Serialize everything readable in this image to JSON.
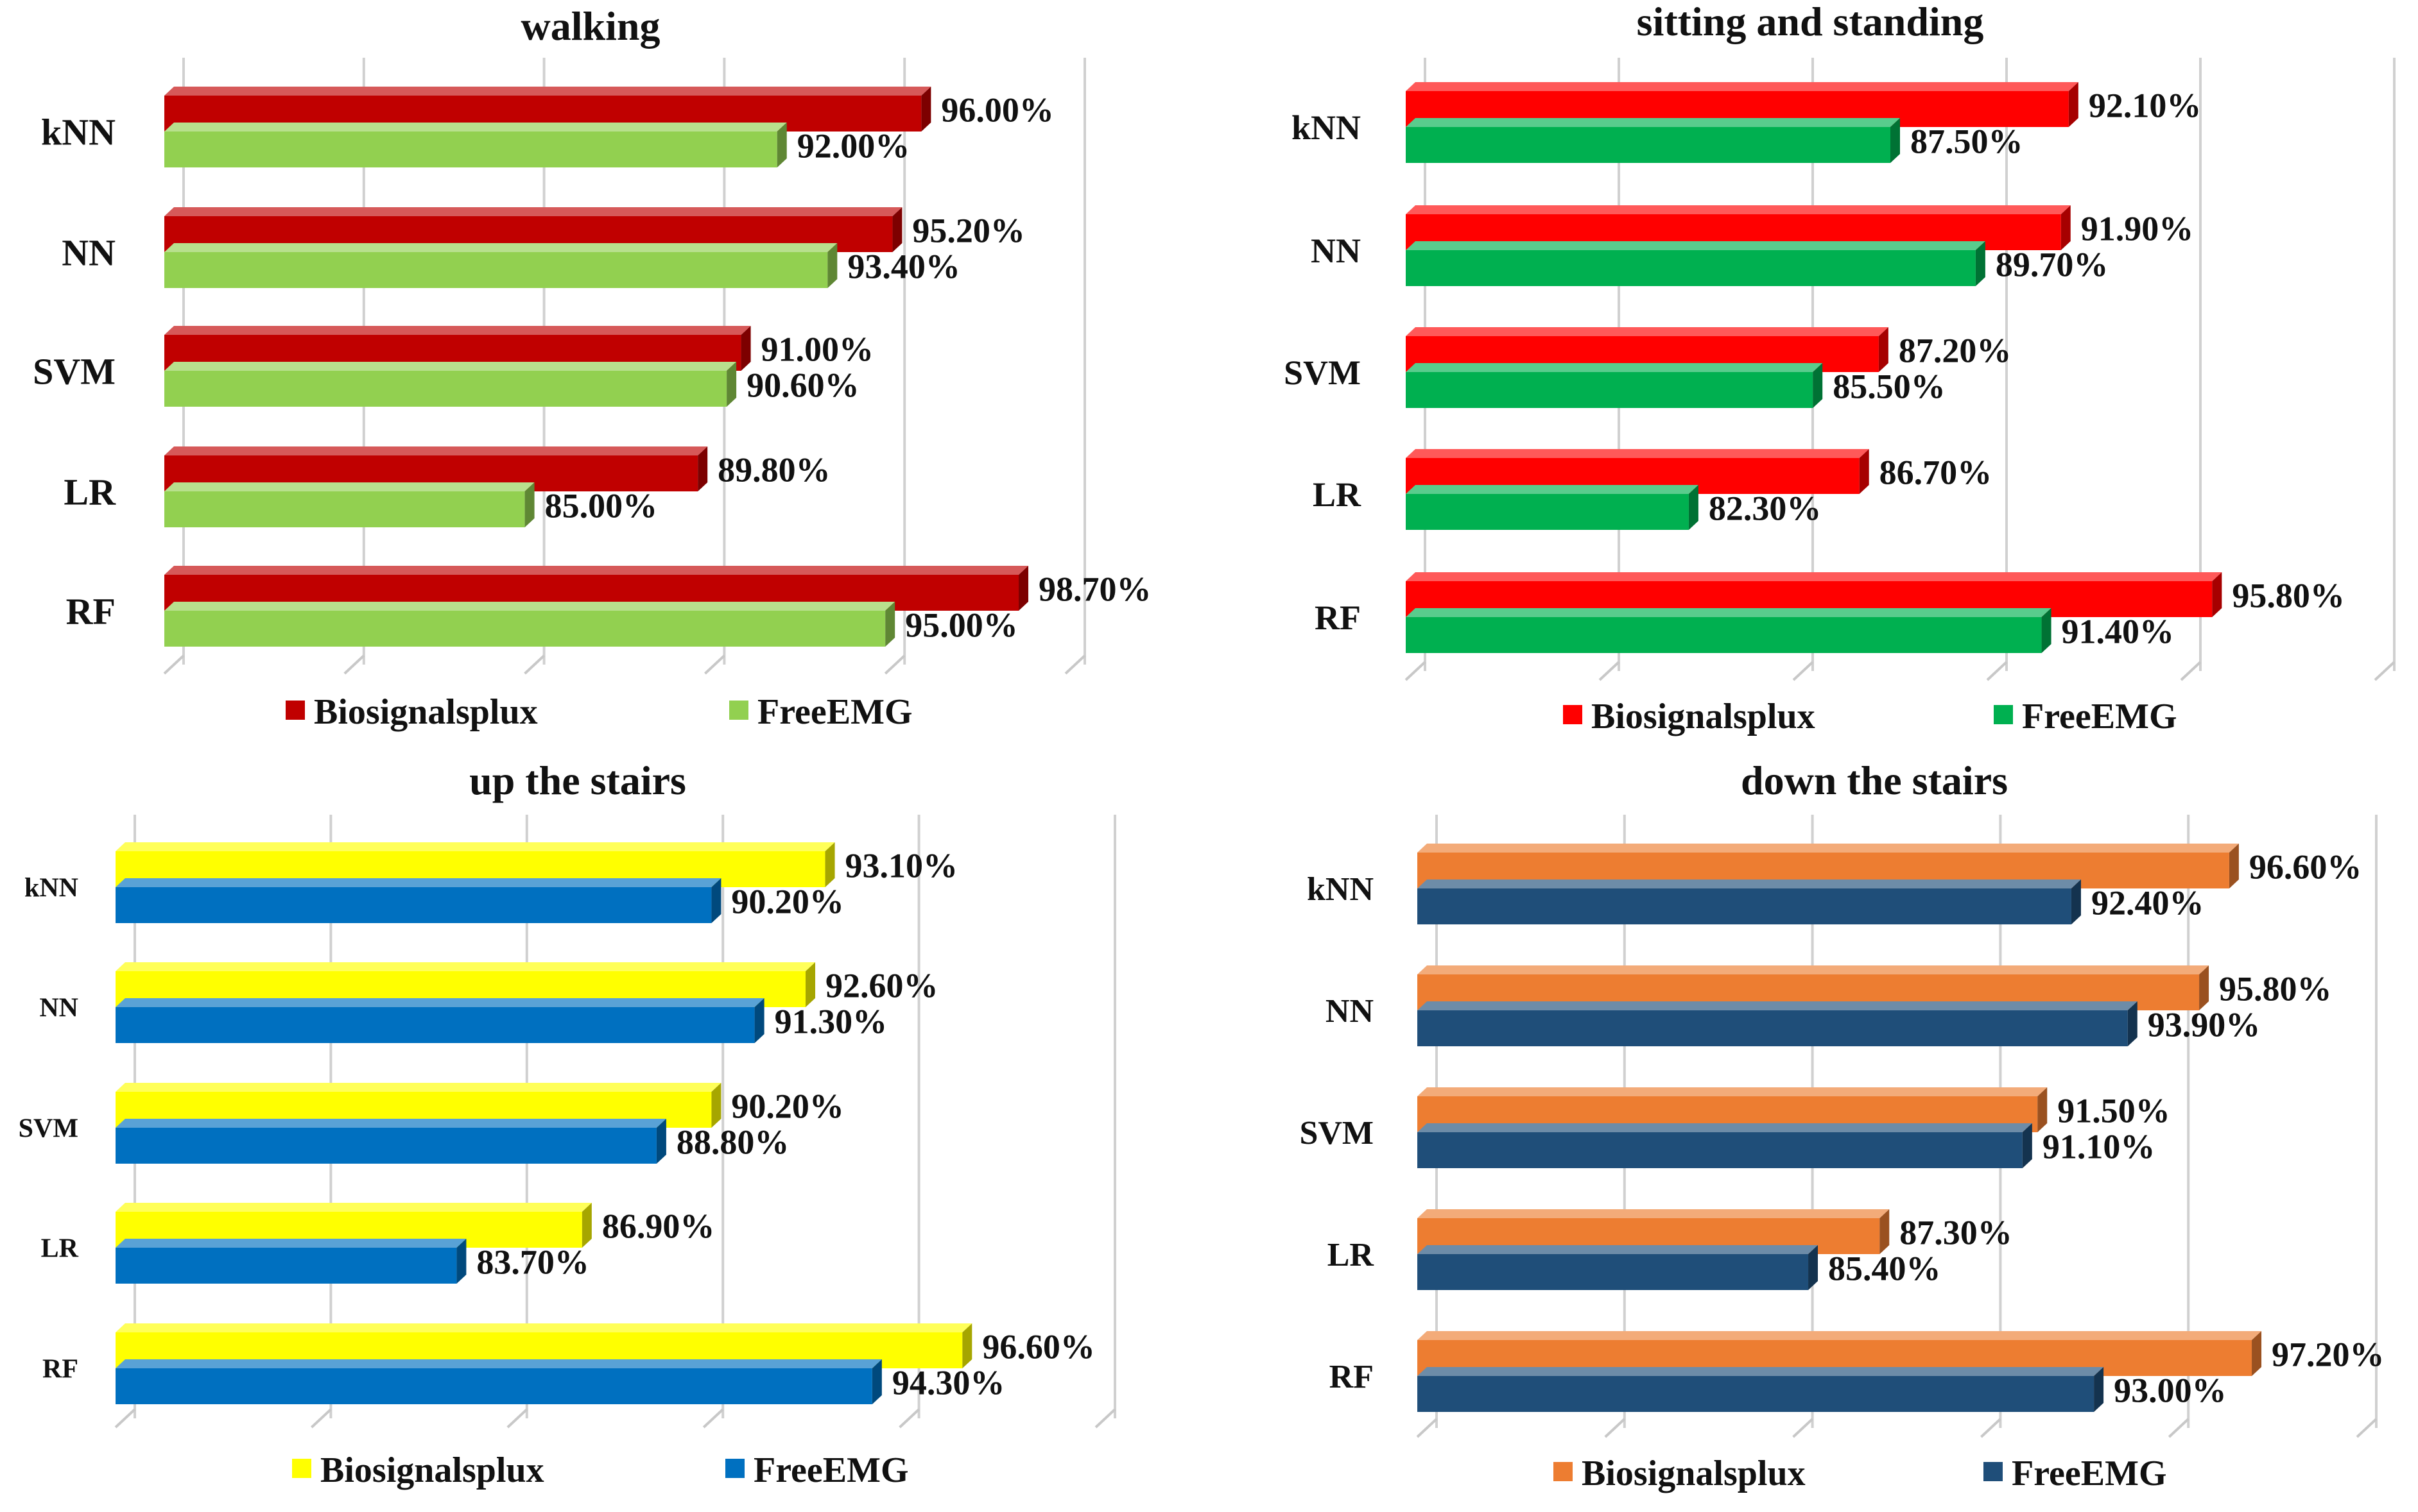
{
  "chart_data": [
    {
      "type": "bar",
      "title": "walking",
      "categories": [
        "kNN",
        "NN",
        "SVM",
        "LR",
        "RF"
      ],
      "series": [
        {
          "name": "Biosignalsplux",
          "color": "#c00000",
          "values": [
            96.0,
            95.2,
            91.0,
            89.8,
            98.7
          ],
          "labels": [
            "96.00%",
            "95.20%",
            "91.00%",
            "89.80%",
            "98.70%"
          ]
        },
        {
          "name": "FreeEMG",
          "color": "#92d050",
          "values": [
            92.0,
            93.4,
            90.6,
            85.0,
            95.0
          ],
          "labels": [
            "92.00%",
            "93.40%",
            "90.60%",
            "85.00%",
            "95.00%"
          ]
        }
      ],
      "xlim": [
        75,
        100
      ],
      "grid": true,
      "legend": "bottom"
    },
    {
      "type": "bar",
      "title": "sitting and standing",
      "categories": [
        "kNN",
        "NN",
        "SVM",
        "LR",
        "RF"
      ],
      "series": [
        {
          "name": "Biosignalsplux",
          "color": "#ff0000",
          "values": [
            92.1,
            91.9,
            87.2,
            86.7,
            95.8
          ],
          "labels": [
            "92.10%",
            "91.90%",
            "87.20%",
            "86.70%",
            "95.80%"
          ]
        },
        {
          "name": "FreeEMG",
          "color": "#00b050",
          "values": [
            87.5,
            89.7,
            85.5,
            82.3,
            91.4
          ],
          "labels": [
            "87.50%",
            "89.70%",
            "85.50%",
            "82.30%",
            "91.40%"
          ]
        }
      ],
      "xlim": [
        75,
        100
      ],
      "grid": true,
      "legend": "bottom"
    },
    {
      "type": "bar",
      "title": "up the stairs",
      "categories": [
        "kNN",
        "NN",
        "SVM",
        "LR",
        "RF"
      ],
      "series": [
        {
          "name": "Biosignalsplux",
          "color": "#ffff00",
          "values": [
            93.1,
            92.6,
            90.2,
            86.9,
            96.6
          ],
          "labels": [
            "93.10%",
            "92.60%",
            "90.20%",
            "86.90%",
            "96.60%"
          ]
        },
        {
          "name": "FreeEMG",
          "color": "#0070c0",
          "values": [
            90.2,
            91.3,
            88.8,
            83.7,
            94.3
          ],
          "labels": [
            "90.20%",
            "91.30%",
            "88.80%",
            "83.70%",
            "94.30%"
          ]
        }
      ],
      "xlim": [
        75,
        100
      ],
      "grid": true,
      "legend": "bottom"
    },
    {
      "type": "bar",
      "title": "down the stairs",
      "categories": [
        "kNN",
        "NN",
        "SVM",
        "LR",
        "RF"
      ],
      "series": [
        {
          "name": "Biosignalsplux",
          "color": "#ed7d31",
          "values": [
            96.6,
            95.8,
            91.5,
            87.3,
            97.2
          ],
          "labels": [
            "96.60%",
            "95.80%",
            "91.50%",
            "87.30%",
            "97.20%"
          ]
        },
        {
          "name": "FreeEMG",
          "color": "#1f4e79",
          "values": [
            92.4,
            93.9,
            91.1,
            85.4,
            93.0
          ],
          "labels": [
            "92.40%",
            "93.90%",
            "91.10%",
            "85.40%",
            "93.00%"
          ]
        }
      ],
      "xlim": [
        75,
        100
      ],
      "grid": true,
      "legend": "bottom"
    }
  ]
}
